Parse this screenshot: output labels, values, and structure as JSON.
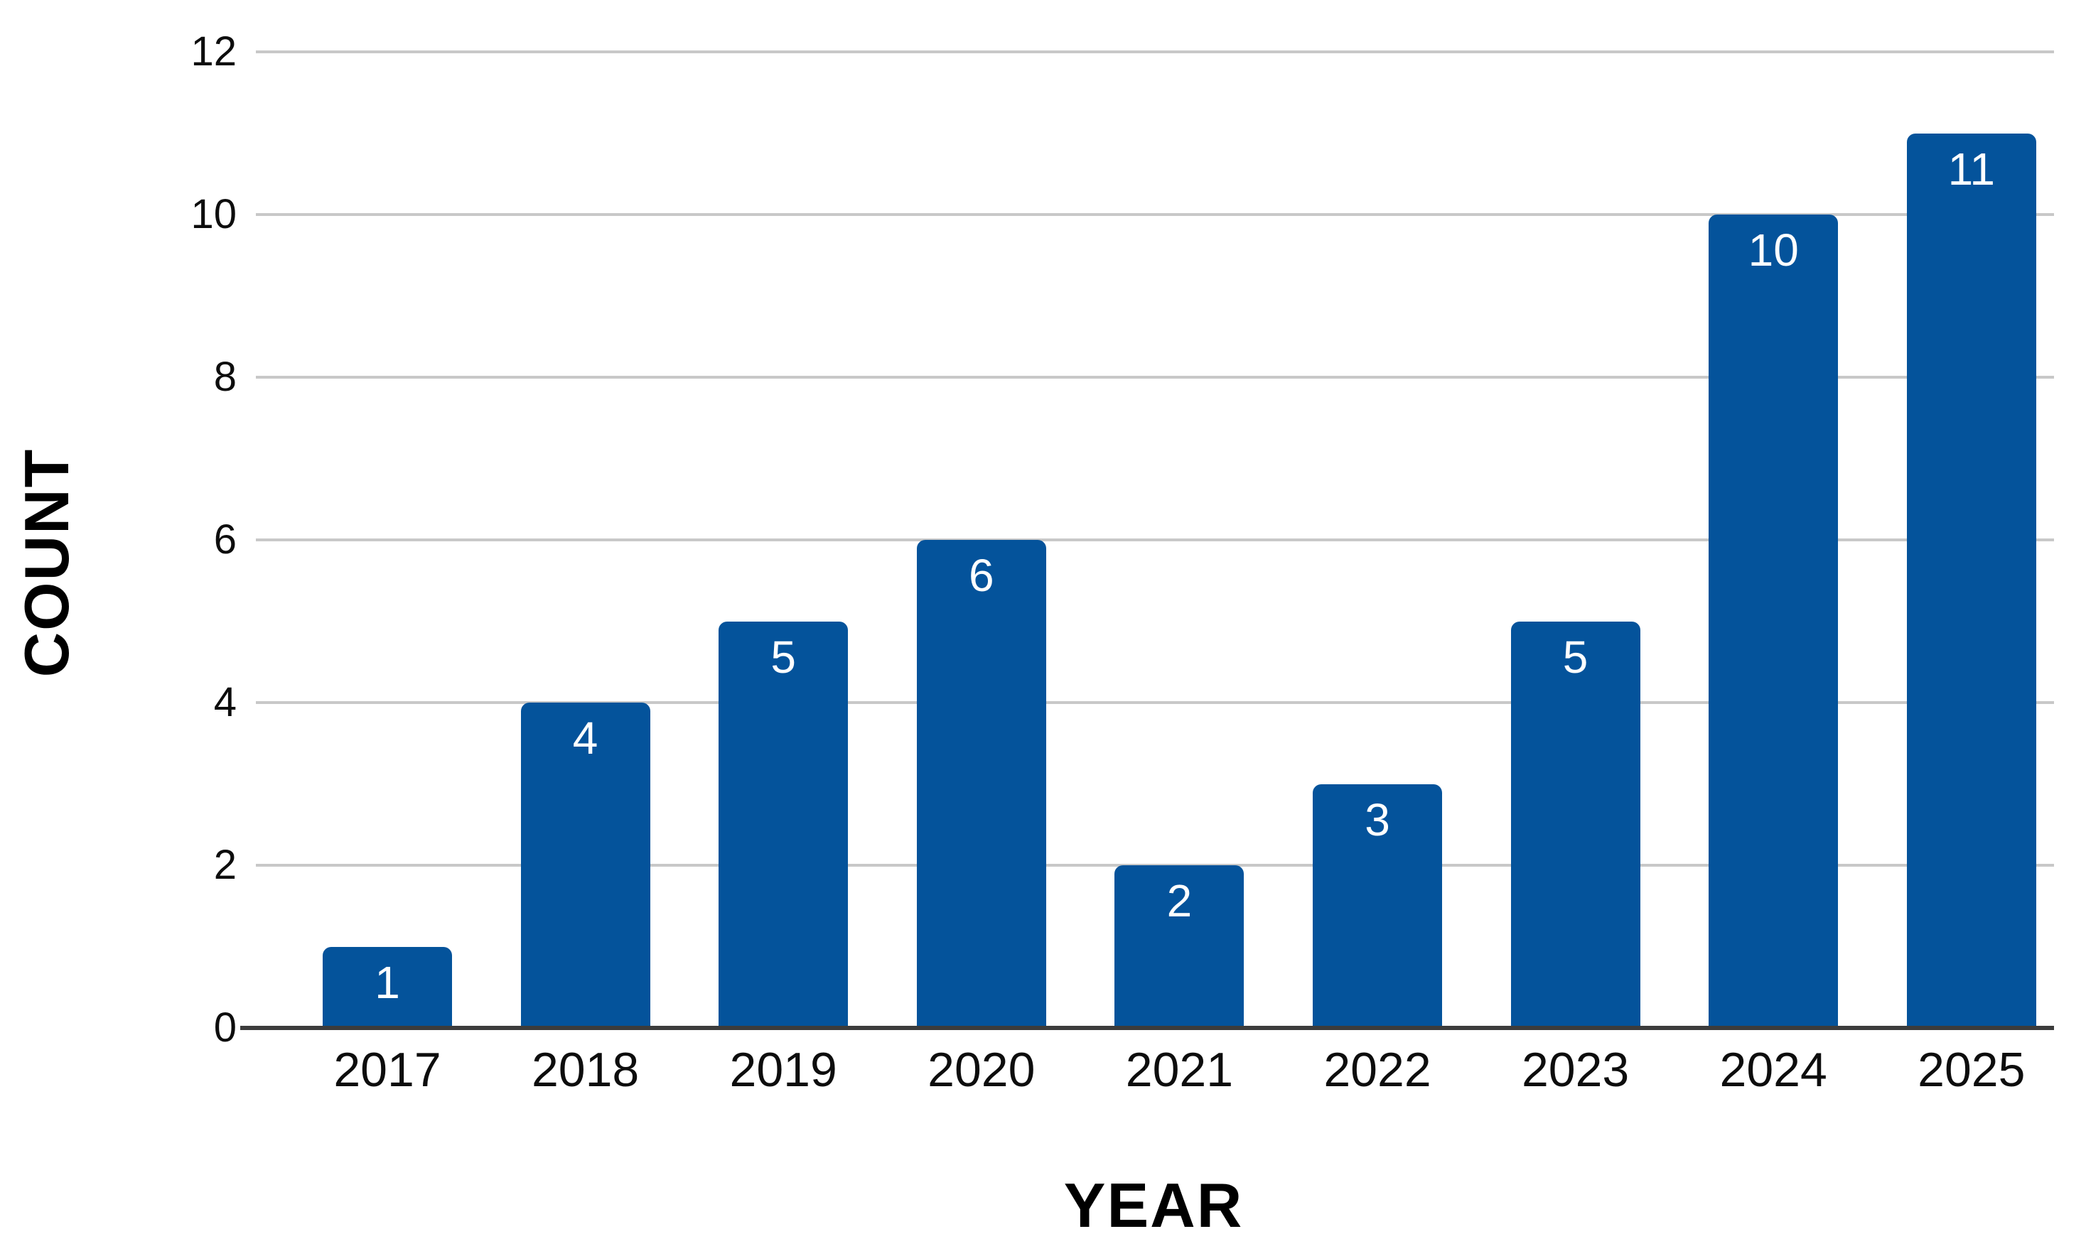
{
  "chart_data": {
    "type": "bar",
    "categories": [
      "2017",
      "2018",
      "2019",
      "2020",
      "2021",
      "2022",
      "2023",
      "2024",
      "2025"
    ],
    "values": [
      1,
      4,
      5,
      6,
      2,
      3,
      5,
      10,
      11
    ],
    "xlabel": "YEAR",
    "ylabel": "COUNT",
    "ylim": [
      0,
      12
    ],
    "yticks": [
      0,
      2,
      4,
      6,
      8,
      10,
      12
    ],
    "grid": "horizontal",
    "legend": "none",
    "bar_label_position": "inside-top",
    "colors": {
      "bar": "#04539b",
      "bar_label": "#ffffff",
      "gridline": "#c8c8c8",
      "axis_line": "#3c3c3c",
      "tick_text": "#0d0d0d",
      "axis_title_text": "#000000",
      "background": "#ffffff"
    }
  }
}
